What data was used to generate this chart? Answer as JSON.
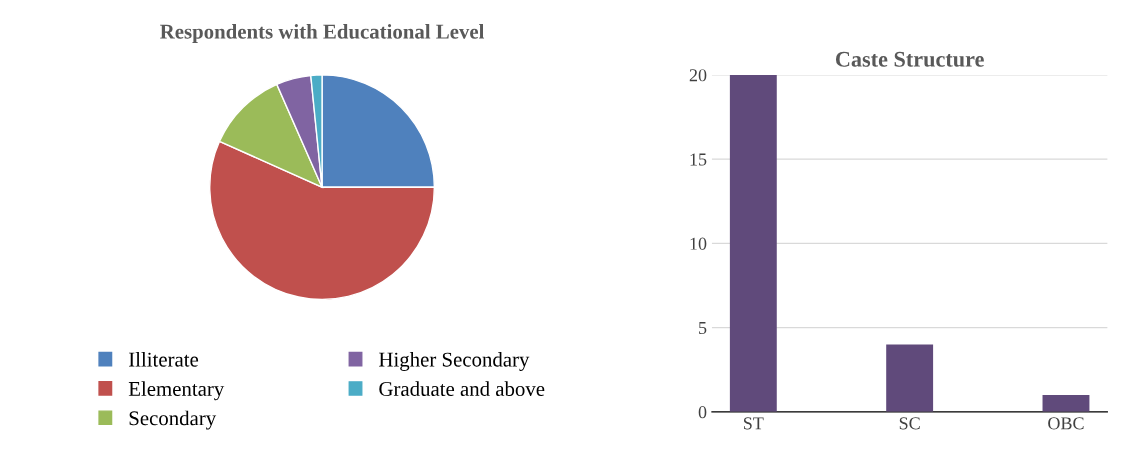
{
  "chart_data": [
    {
      "type": "pie",
      "title": "Respondents with Educational Level",
      "categories": [
        "Illiterate",
        "Elementary",
        "Secondary",
        "Higher Secondary",
        "Graduate and above"
      ],
      "values": [
        25,
        56.7,
        11.7,
        5,
        1.6
      ],
      "colors": [
        "#4f81bd",
        "#c0504d",
        "#9bbb59",
        "#8064a2",
        "#4bacc6"
      ],
      "legend": "bottom"
    },
    {
      "type": "bar",
      "title": "Caste Structure",
      "categories": [
        "ST",
        "SC",
        "OBC"
      ],
      "values": [
        20,
        4,
        1
      ],
      "color": "#604a7b",
      "ylim": [
        0,
        20
      ],
      "yticks": [
        0,
        5,
        10,
        15,
        20
      ],
      "grid": "y"
    }
  ]
}
